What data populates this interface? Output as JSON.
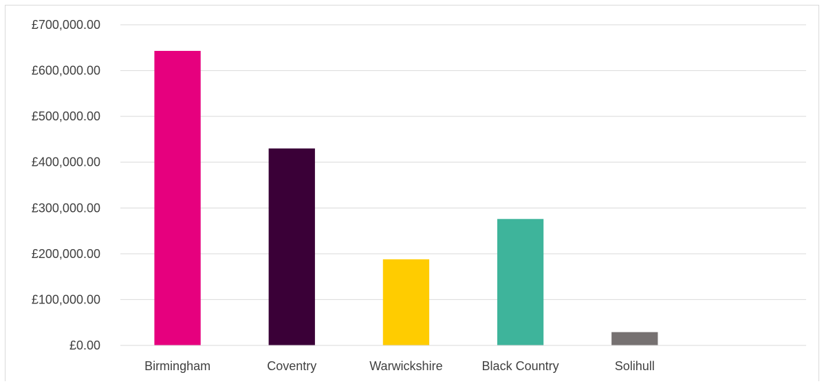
{
  "chart_data": {
    "type": "bar",
    "title": "",
    "xlabel": "",
    "ylabel": "",
    "categories": [
      "Birmingham",
      "Coventry",
      "Warwickshire",
      "Black Country",
      "Solihull",
      ""
    ],
    "values": [
      643000,
      430000,
      188000,
      276000,
      29000,
      null
    ],
    "colors": [
      "#e6007e",
      "#3a0037",
      "#ffcc00",
      "#3eb49b",
      "#767171",
      null
    ],
    "ylim": [
      0,
      700000
    ],
    "yticks": [
      0,
      100000,
      200000,
      300000,
      400000,
      500000,
      600000,
      700000
    ],
    "ytick_labels": [
      "£0.00",
      "£100,000.00",
      "£200,000.00",
      "£300,000.00",
      "£400,000.00",
      "£500,000.00",
      "£600,000.00",
      "£700,000.00"
    ],
    "grid": true,
    "legend": "none"
  }
}
